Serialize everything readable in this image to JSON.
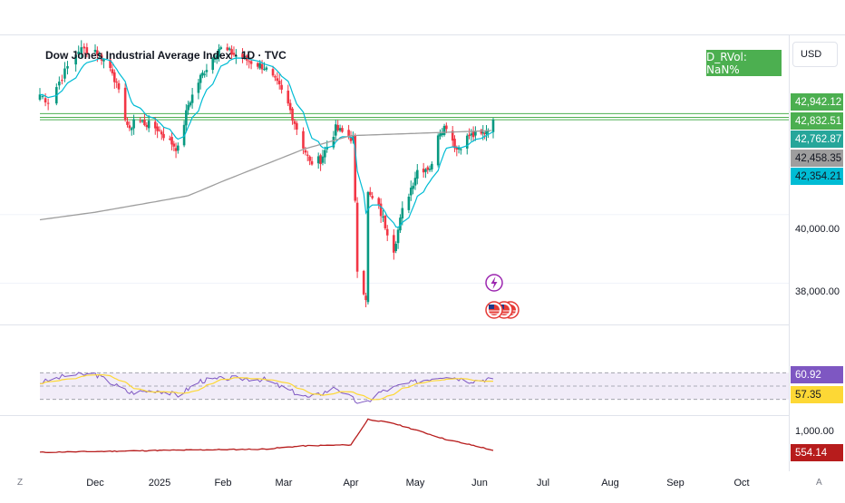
{
  "header": {
    "title": "Dow Jones Industrial Average Index · 1D · TVC",
    "rvol_label": "D_RVol: NaN%",
    "currency": "USD"
  },
  "colors": {
    "up": "#089981",
    "down": "#f23645",
    "ema": "#00bcd4",
    "sma200": "#9e9e9e",
    "rsi": "#7e57c2",
    "rsi_ma": "#fdd835",
    "indicator3": "#b71c1c",
    "hline": "#4caf50"
  },
  "price_scale": {
    "tags": [
      {
        "label": "42,942.12",
        "bg": "#4caf50",
        "fg": "#ffffff"
      },
      {
        "label": "42,832.51",
        "bg": "#4caf50",
        "fg": "#ffffff"
      },
      {
        "label": "42,762.87",
        "bg": "#26a69a",
        "fg": "#ffffff"
      },
      {
        "label": "42,458.35",
        "bg": "#9e9e9e",
        "fg": "#131722"
      },
      {
        "label": "42,354.21",
        "bg": "#00bcd4",
        "fg": "#131722"
      }
    ],
    "ticks": [
      "40,000.00",
      "38,000.00"
    ]
  },
  "rsi_scale": {
    "tags": [
      {
        "label": "60.92",
        "bg": "#7e57c2",
        "fg": "#ffffff"
      },
      {
        "label": "57.35",
        "bg": "#fdd835",
        "fg": "#131722"
      }
    ]
  },
  "ind3_scale": {
    "tick": "1,000.00",
    "tag": {
      "label": "554.14",
      "bg": "#b71c1c",
      "fg": "#ffffff"
    }
  },
  "time_axis": {
    "ticks": [
      "Dec",
      "2025",
      "Feb",
      "Mar",
      "Apr",
      "May",
      "Jun",
      "Jul",
      "Aug",
      "Sep",
      "Oct"
    ],
    "left_corner": "Z",
    "right_corner": "A"
  },
  "events": {
    "bolt_icon": "lightning-icon",
    "flag_icon": "us-flag-icon"
  },
  "chart_data": {
    "type": "candlestick",
    "title": "Dow Jones Industrial Average Index · 1D · TVC",
    "y_range": [
      36800,
      45300
    ],
    "horizontal_levels": [
      42942.12,
      42832.51,
      42762.87
    ],
    "last": {
      "close": 42762.87,
      "sma200": 42458.35,
      "ema": 42354.21
    },
    "anchors": {
      "dates": [
        "2024-11-12",
        "2024-11-15",
        "2024-11-22",
        "2024-11-26",
        "2024-12-02",
        "2024-12-10",
        "2024-12-18",
        "2024-12-20",
        "2024-12-31",
        "2025-01-10",
        "2025-01-15",
        "2025-01-21",
        "2025-01-30",
        "2025-02-05",
        "2025-02-12",
        "2025-02-20",
        "2025-02-27",
        "2025-03-03",
        "2025-03-10",
        "2025-03-13",
        "2025-03-18",
        "2025-03-25",
        "2025-04-02",
        "2025-04-04",
        "2025-04-08",
        "2025-04-09",
        "2025-04-14",
        "2025-04-21",
        "2025-04-25",
        "2025-05-02",
        "2025-05-09",
        "2025-05-12",
        "2025-05-16",
        "2025-05-21",
        "2025-05-27",
        "2025-06-02",
        "2025-06-09"
      ],
      "closes": [
        43500,
        43300,
        44300,
        44800,
        44800,
        44200,
        42400,
        42800,
        42500,
        41900,
        43200,
        44000,
        44850,
        44700,
        44500,
        44300,
        43700,
        43200,
        42000,
        41500,
        41600,
        42500,
        42200,
        38400,
        37600,
        40600,
        40200,
        39000,
        40100,
        41300,
        41400,
        42400,
        42600,
        41900,
        42300,
        42300,
        42750
      ]
    },
    "sma200_anchors": {
      "dates": [
        "2024-11-12",
        "2025-01-15",
        "2025-03-10",
        "2025-04-01",
        "2025-06-09"
      ],
      "values": [
        39850,
        40550,
        41900,
        42300,
        42450
      ]
    },
    "rsi": {
      "range": [
        20,
        80
      ],
      "last": 60.92,
      "ma_last": 57.35,
      "anchors": {
        "dates": [
          "2024-11-12",
          "2024-11-22",
          "2024-12-02",
          "2024-12-18",
          "2024-12-31",
          "2025-01-10",
          "2025-01-21",
          "2025-02-05",
          "2025-02-20",
          "2025-03-03",
          "2025-03-13",
          "2025-03-25",
          "2025-04-04",
          "2025-04-08",
          "2025-04-14",
          "2025-04-25",
          "2025-05-09",
          "2025-05-16",
          "2025-05-27",
          "2025-06-09"
        ],
        "values": [
          55,
          66,
          68,
          40,
          44,
          36,
          58,
          62,
          60,
          44,
          32,
          48,
          26,
          24,
          40,
          52,
          62,
          66,
          58,
          61
        ]
      }
    },
    "indicator3": {
      "last": 554.14,
      "tick": 1000,
      "anchors": {
        "dates": [
          "2024-11-12",
          "2024-12-31",
          "2025-02-20",
          "2025-03-10",
          "2025-04-01",
          "2025-04-09",
          "2025-04-21",
          "2025-05-16",
          "2025-06-09"
        ],
        "values": [
          520,
          555,
          580,
          640,
          660,
          1140,
          1060,
          760,
          554
        ]
      }
    }
  }
}
